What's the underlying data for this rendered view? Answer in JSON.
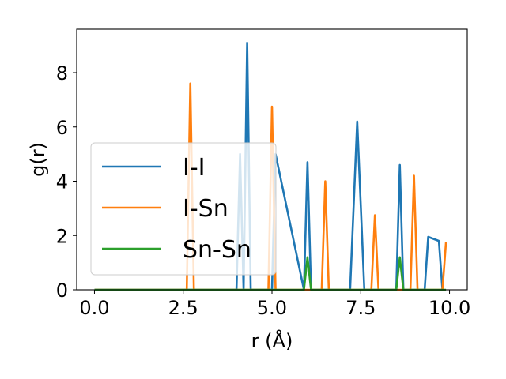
{
  "chart_data": {
    "type": "line",
    "xlabel": "r (Å)",
    "ylabel": "g(r)",
    "xlim": [
      -0.5,
      10.5
    ],
    "ylim": [
      0,
      9.6
    ],
    "xticks": [
      0.0,
      2.5,
      5.0,
      7.5,
      10.0
    ],
    "xtick_labels": [
      "0.0",
      "2.5",
      "5.0",
      "7.5",
      "10.0"
    ],
    "yticks": [
      0,
      2,
      4,
      6,
      8
    ],
    "ytick_labels": [
      "0",
      "2",
      "4",
      "6",
      "8"
    ],
    "grid": false,
    "legend_position": "center-left",
    "series": [
      {
        "name": "I-I",
        "color": "#1f77b4",
        "x": [
          0.0,
          4.0,
          4.1,
          4.2,
          4.3,
          4.4,
          5.0,
          5.1,
          5.9,
          6.0,
          6.1,
          7.2,
          7.4,
          7.6,
          8.5,
          8.6,
          8.7,
          9.3,
          9.4,
          9.7,
          9.8
        ],
        "y": [
          0,
          0,
          5.0,
          0,
          9.1,
          0,
          0,
          5.0,
          0,
          4.7,
          0,
          0,
          6.2,
          0,
          0,
          4.6,
          0,
          0,
          1.95,
          1.8,
          0
        ]
      },
      {
        "name": "I-Sn",
        "color": "#ff7f0e",
        "x": [
          0.0,
          2.6,
          2.7,
          2.8,
          4.9,
          5.0,
          5.1,
          6.4,
          6.5,
          6.6,
          7.8,
          7.9,
          8.0,
          8.9,
          9.0,
          9.1,
          9.8,
          9.9
        ],
        "y": [
          0,
          0,
          7.6,
          0,
          0,
          6.75,
          0,
          0,
          4.0,
          0,
          0,
          2.75,
          0,
          0,
          4.2,
          0,
          0,
          1.75
        ]
      },
      {
        "name": "Sn-Sn",
        "color": "#2ca02c",
        "x": [
          0.0,
          5.9,
          6.0,
          6.1,
          8.5,
          8.6,
          8.7,
          9.9
        ],
        "y": [
          0,
          0,
          1.2,
          0,
          0,
          1.2,
          0,
          0
        ]
      }
    ]
  }
}
